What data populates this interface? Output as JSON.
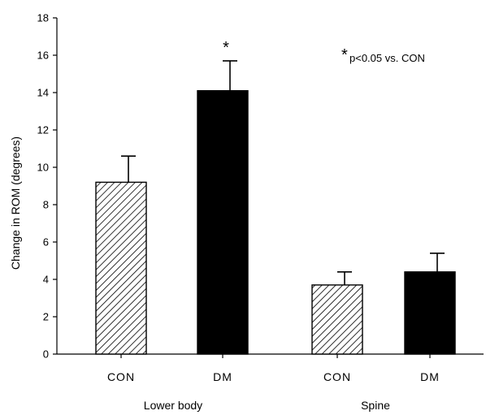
{
  "chart_data": {
    "type": "bar",
    "ylabel": "Change in ROM (degrees)",
    "ylim": [
      0,
      18
    ],
    "yticks": [
      "0",
      "2",
      "4",
      "6",
      "8",
      "10",
      "12",
      "14",
      "16",
      "18"
    ],
    "groups": [
      {
        "label": "Lower body",
        "bars": [
          {
            "category": "CON",
            "value": 9.2,
            "error": 1.4,
            "pattern": "hatched",
            "significance": ""
          },
          {
            "category": "DM",
            "value": 14.1,
            "error": 1.6,
            "pattern": "solid",
            "significance": "*"
          }
        ]
      },
      {
        "label": "Spine",
        "bars": [
          {
            "category": "CON",
            "value": 3.7,
            "error": 0.7,
            "pattern": "hatched",
            "significance": ""
          },
          {
            "category": "DM",
            "value": 4.4,
            "error": 1.0,
            "pattern": "solid",
            "significance": ""
          }
        ]
      }
    ],
    "annotation": {
      "symbol": "*",
      "text": "p<0.05 vs. CON"
    },
    "colors": {
      "solid": "#000000",
      "hatch": "#000000",
      "axis": "#000000"
    }
  }
}
